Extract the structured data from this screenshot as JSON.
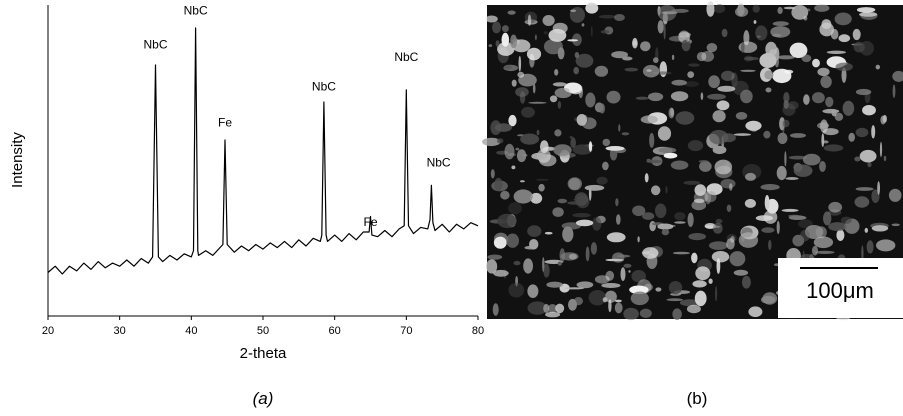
{
  "chart_data": {
    "type": "line",
    "xlabel": "2-theta",
    "ylabel": "Intensity",
    "caption": "(a)",
    "xlim": [
      20,
      80
    ],
    "xticks": [
      20,
      30,
      40,
      50,
      60,
      70,
      80
    ],
    "ylim": [
      0,
      100
    ],
    "color": "#000000",
    "x": [
      20,
      21,
      22,
      23,
      24,
      25,
      26,
      27,
      28,
      29,
      30,
      31,
      32,
      33,
      34,
      34.6,
      35,
      35.4,
      36,
      37,
      38,
      39,
      40,
      40.3,
      40.6,
      40.9,
      41,
      42,
      43,
      44,
      44.4,
      44.7,
      45,
      46,
      47,
      48,
      49,
      50,
      51,
      52,
      53,
      54,
      55,
      56,
      57,
      58,
      58.2,
      58.5,
      58.8,
      59,
      60,
      61,
      62,
      63,
      64,
      64.8,
      65,
      65.2,
      66,
      67,
      68,
      69,
      69.7,
      70,
      70.3,
      71,
      72,
      73,
      73.3,
      73.5,
      73.7,
      74,
      75,
      76,
      77,
      78,
      79,
      80
    ],
    "values": [
      14,
      16,
      13.5,
      16,
      14.5,
      17,
      15,
      17.5,
      15.5,
      17,
      16,
      18,
      16,
      18.5,
      17,
      19,
      80.7,
      19,
      17.5,
      19.5,
      18,
      20,
      19,
      21,
      92.6,
      21,
      19.5,
      21,
      19.5,
      22,
      23,
      56.6,
      23,
      20.5,
      22.5,
      21,
      23,
      21.5,
      23.5,
      22,
      24,
      22,
      24.5,
      22.5,
      25,
      24,
      26,
      68.8,
      26,
      24,
      26,
      24,
      26.5,
      24.5,
      27,
      27,
      32,
      26,
      25.5,
      27.5,
      25.5,
      28,
      29,
      72.7,
      29,
      26.5,
      28.5,
      28,
      31,
      42,
      30,
      27.5,
      29.5,
      27,
      29.5,
      28,
      30,
      29
    ],
    "annotations": [
      {
        "text": "NbC",
        "x": 35,
        "y": 86
      },
      {
        "text": "NbC",
        "x": 40.6,
        "y": 97
      },
      {
        "text": "Fe",
        "x": 44.7,
        "y": 61
      },
      {
        "text": "NbC",
        "x": 58.5,
        "y": 72.5
      },
      {
        "text": "Fe",
        "x": 65,
        "y": 29
      },
      {
        "text": "NbC",
        "x": 70,
        "y": 82
      },
      {
        "text": "NbC",
        "x": 74.5,
        "y": 48
      }
    ]
  },
  "image": {
    "scale_bar": "100μm",
    "caption": "(b)"
  }
}
